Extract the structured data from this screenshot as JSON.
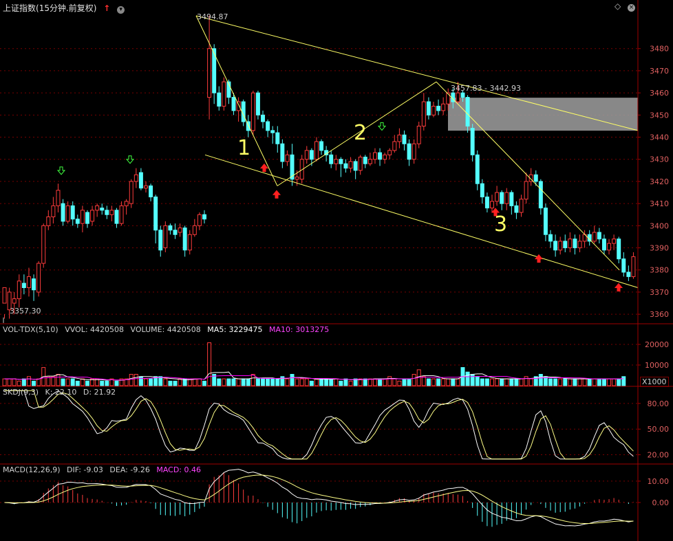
{
  "title": {
    "name": "上证指数",
    "mode": "(15分钟.前复权)",
    "up_arrow_icon": "red-up-arrow-icon",
    "dropdown_icon": "chevron-down-icon",
    "diamond_icon": "diamond-icon",
    "close_icon": "close-circle-icon"
  },
  "colors": {
    "up": "#ff3c3c",
    "down": "#54ffff",
    "grid": "#7a0000",
    "axis": "#a00000",
    "trend": "#ffff66",
    "ma_white": "#ffffff",
    "ma_purple": "#ff00ff",
    "zone": "#a0a0a0",
    "wave_label": "#ffff66"
  },
  "price_annotations": {
    "high": "3494.87",
    "low": "3357.30",
    "zone_range": "3457.83 - 3442.93"
  },
  "wave_labels": [
    "1",
    "2",
    "3"
  ],
  "volume_header": {
    "indicator": "VOL-TDX(5,10)",
    "vvol": "VVOL: 4420508",
    "volume": "VOLUME: 4420508",
    "ma5": "MA5: 3229475",
    "ma10": "MA10: 3013275",
    "unit_label": "X1000"
  },
  "skdj_header": {
    "indicator": "SKDJ(9,3)",
    "k": "K: 22.10",
    "d": "D: 21.92"
  },
  "macd_header": {
    "indicator": "MACD(12,26,9)",
    "dif": "DIF: -9.03",
    "dea": "DEA: -9.26",
    "macd": "MACD: 0.46"
  },
  "chart_data": [
    {
      "type": "candlestick",
      "panel": "price",
      "y_ticks": [
        3360,
        3370,
        3380,
        3390,
        3400,
        3410,
        3420,
        3430,
        3440,
        3450,
        3460,
        3470,
        3480
      ],
      "ylim": [
        3356,
        3497
      ],
      "candles": [
        [
          3365,
          3372,
          3360,
          3358
        ],
        [
          3362,
          3370,
          3372,
          3358
        ],
        [
          3365,
          3367,
          3370,
          3360
        ],
        [
          3367,
          3375,
          3378,
          3363
        ],
        [
          3374,
          3372,
          3378,
          3369
        ],
        [
          3372,
          3377,
          3381,
          3368
        ],
        [
          3376,
          3371,
          3378,
          3366
        ],
        [
          3370,
          3383,
          3384,
          3368
        ],
        [
          3383,
          3400,
          3401,
          3381
        ],
        [
          3400,
          3404,
          3407,
          3398
        ],
        [
          3404,
          3409,
          3413,
          3401
        ],
        [
          3409,
          3416,
          3419,
          3406
        ],
        [
          3410,
          3402,
          3412,
          3400
        ],
        [
          3402,
          3409,
          3411,
          3401
        ],
        [
          3409,
          3403,
          3411,
          3400
        ],
        [
          3403,
          3401,
          3405,
          3399
        ],
        [
          3401,
          3407,
          3409,
          3397
        ],
        [
          3406,
          3401,
          3407,
          3399
        ],
        [
          3402,
          3407,
          3409,
          3400
        ],
        [
          3407,
          3409,
          3410,
          3404
        ],
        [
          3408,
          3407,
          3410,
          3405
        ],
        [
          3407,
          3405,
          3409,
          3403
        ],
        [
          3405,
          3407,
          3409,
          3402
        ],
        [
          3407,
          3401,
          3408,
          3399
        ],
        [
          3401,
          3409,
          3411,
          3400
        ],
        [
          3409,
          3411,
          3412,
          3405
        ],
        [
          3410,
          3420,
          3421,
          3408
        ],
        [
          3420,
          3423,
          3426,
          3417
        ],
        [
          3424,
          3417,
          3426,
          3416
        ],
        [
          3417,
          3418,
          3420,
          3415
        ],
        [
          3418,
          3413,
          3419,
          3411
        ],
        [
          3413,
          3398,
          3414,
          3392
        ],
        [
          3398,
          3389,
          3400,
          3386
        ],
        [
          3390,
          3400,
          3402,
          3388
        ],
        [
          3400,
          3398,
          3401,
          3396
        ],
        [
          3398,
          3396,
          3401,
          3394
        ],
        [
          3397,
          3399,
          3401,
          3395
        ],
        [
          3399,
          3389,
          3400,
          3386
        ],
        [
          3389,
          3396,
          3398,
          3387
        ],
        [
          3396,
          3400,
          3403,
          3395
        ],
        [
          3400,
          3405,
          3406,
          3398
        ],
        [
          3405,
          3403,
          3407,
          3401
        ],
        [
          3458,
          3480,
          3495,
          3448
        ],
        [
          3480,
          3460,
          3482,
          3455
        ],
        [
          3460,
          3454,
          3463,
          3452
        ],
        [
          3454,
          3465,
          3467,
          3452
        ],
        [
          3465,
          3458,
          3466,
          3455
        ],
        [
          3458,
          3452,
          3460,
          3450
        ],
        [
          3452,
          3456,
          3458,
          3447
        ],
        [
          3456,
          3447,
          3457,
          3445
        ],
        [
          3447,
          3443,
          3450,
          3440
        ],
        [
          3443,
          3460,
          3461,
          3441
        ],
        [
          3460,
          3450,
          3461,
          3448
        ],
        [
          3450,
          3447,
          3452,
          3444
        ],
        [
          3447,
          3443,
          3448,
          3440
        ],
        [
          3443,
          3442,
          3445,
          3437
        ],
        [
          3442,
          3437,
          3445,
          3433
        ],
        [
          3437,
          3429,
          3439,
          3426
        ],
        [
          3429,
          3432,
          3434,
          3427
        ],
        [
          3432,
          3421,
          3437,
          3418
        ],
        [
          3421,
          3422,
          3425,
          3418
        ],
        [
          3421,
          3430,
          3432,
          3419
        ],
        [
          3430,
          3434,
          3436,
          3428
        ],
        [
          3434,
          3430,
          3435,
          3427
        ],
        [
          3430,
          3438,
          3440,
          3429
        ],
        [
          3438,
          3434,
          3439,
          3432
        ],
        [
          3434,
          3432,
          3436,
          3429
        ],
        [
          3432,
          3428,
          3434,
          3426
        ],
        [
          3428,
          3430,
          3432,
          3425
        ],
        [
          3430,
          3428,
          3431,
          3422
        ],
        [
          3428,
          3426,
          3430,
          3424
        ],
        [
          3426,
          3429,
          3431,
          3424
        ],
        [
          3429,
          3425,
          3430,
          3421
        ],
        [
          3425,
          3431,
          3432,
          3423
        ],
        [
          3431,
          3428,
          3432,
          3426
        ],
        [
          3428,
          3430,
          3433,
          3427
        ],
        [
          3430,
          3433,
          3435,
          3428
        ],
        [
          3433,
          3430,
          3435,
          3427
        ],
        [
          3430,
          3432,
          3433,
          3428
        ],
        [
          3432,
          3434,
          3435,
          3430
        ],
        [
          3434,
          3438,
          3441,
          3433
        ],
        [
          3438,
          3441,
          3444,
          3435
        ],
        [
          3441,
          3437,
          3443,
          3434
        ],
        [
          3437,
          3430,
          3439,
          3427
        ],
        [
          3430,
          3437,
          3439,
          3428
        ],
        [
          3437,
          3445,
          3447,
          3435
        ],
        [
          3445,
          3456,
          3460,
          3443
        ],
        [
          3456,
          3450,
          3458,
          3448
        ],
        [
          3450,
          3454,
          3456,
          3449
        ],
        [
          3454,
          3452,
          3457,
          3450
        ],
        [
          3452,
          3455,
          3458,
          3450
        ],
        [
          3455,
          3460,
          3462,
          3452
        ],
        [
          3460,
          3456,
          3462,
          3453
        ],
        [
          3456,
          3460,
          3465,
          3455
        ],
        [
          3460,
          3458,
          3461,
          3456
        ],
        [
          3458,
          3445,
          3459,
          3442
        ],
        [
          3444,
          3432,
          3446,
          3429
        ],
        [
          3432,
          3419,
          3434,
          3416
        ],
        [
          3419,
          3413,
          3421,
          3410
        ],
        [
          3413,
          3408,
          3415,
          3406
        ],
        [
          3408,
          3411,
          3414,
          3406
        ],
        [
          3411,
          3415,
          3418,
          3409
        ],
        [
          3415,
          3410,
          3416,
          3407
        ],
        [
          3410,
          3415,
          3417,
          3407
        ],
        [
          3415,
          3409,
          3416,
          3405
        ],
        [
          3409,
          3406,
          3411,
          3403
        ],
        [
          3406,
          3412,
          3414,
          3404
        ],
        [
          3412,
          3420,
          3424,
          3410
        ],
        [
          3420,
          3423,
          3426,
          3418
        ],
        [
          3423,
          3420,
          3425,
          3418
        ],
        [
          3420,
          3408,
          3421,
          3405
        ],
        [
          3408,
          3396,
          3410,
          3393
        ],
        [
          3396,
          3393,
          3398,
          3390
        ],
        [
          3393,
          3389,
          3396,
          3386
        ],
        [
          3389,
          3393,
          3395,
          3387
        ],
        [
          3393,
          3390,
          3396,
          3388
        ],
        [
          3390,
          3394,
          3397,
          3388
        ],
        [
          3394,
          3390,
          3396,
          3387
        ],
        [
          3390,
          3393,
          3396,
          3388
        ],
        [
          3393,
          3396,
          3398,
          3390
        ],
        [
          3396,
          3393,
          3398,
          3391
        ],
        [
          3393,
          3397,
          3400,
          3392
        ],
        [
          3397,
          3394,
          3399,
          3392
        ],
        [
          3394,
          3389,
          3396,
          3387
        ],
        [
          3389,
          3392,
          3394,
          3387
        ],
        [
          3392,
          3394,
          3396,
          3389
        ],
        [
          3394,
          3385,
          3395,
          3383
        ],
        [
          3385,
          3379,
          3388,
          3377
        ],
        [
          3379,
          3377,
          3382,
          3375
        ],
        [
          3377,
          3386,
          3388,
          3376
        ]
      ]
    },
    {
      "type": "bar",
      "panel": "volume",
      "y_ticks": [
        10000,
        20000
      ],
      "ylim": [
        0,
        30000
      ],
      "values": [
        3,
        3,
        3,
        2,
        3,
        4,
        2,
        3,
        8,
        4,
        4,
        5,
        3,
        3,
        3,
        2,
        3,
        2,
        3,
        3,
        2,
        2,
        3,
        2,
        3,
        3,
        5,
        5,
        4,
        3,
        3,
        4,
        4,
        3,
        2,
        2,
        3,
        3,
        3,
        3,
        3,
        2,
        16,
        5,
        3,
        3,
        3,
        3,
        3,
        3,
        3,
        5,
        3,
        3,
        3,
        3,
        3,
        4,
        3,
        5,
        3,
        3,
        3,
        2,
        3,
        3,
        3,
        3,
        3,
        2,
        3,
        2,
        3,
        3,
        3,
        3,
        3,
        3,
        3,
        4,
        3,
        2,
        3,
        3,
        5,
        7,
        4,
        3,
        3,
        3,
        3,
        3,
        3,
        3,
        8,
        6,
        5,
        4,
        3,
        3,
        3,
        3,
        3,
        3,
        3,
        3,
        3,
        4,
        3,
        4,
        5,
        4,
        3,
        3,
        3,
        3,
        3,
        3,
        3,
        3,
        3,
        3,
        3,
        3,
        3,
        3,
        3,
        4
      ]
    },
    {
      "type": "line",
      "panel": "skdj",
      "y_ticks": [
        20.0,
        50.0,
        80.0
      ],
      "ylim": [
        10,
        100
      ]
    },
    {
      "type": "line",
      "panel": "macd",
      "y_ticks": [
        0.0,
        10.0
      ],
      "ylim": [
        -18,
        18
      ]
    }
  ]
}
